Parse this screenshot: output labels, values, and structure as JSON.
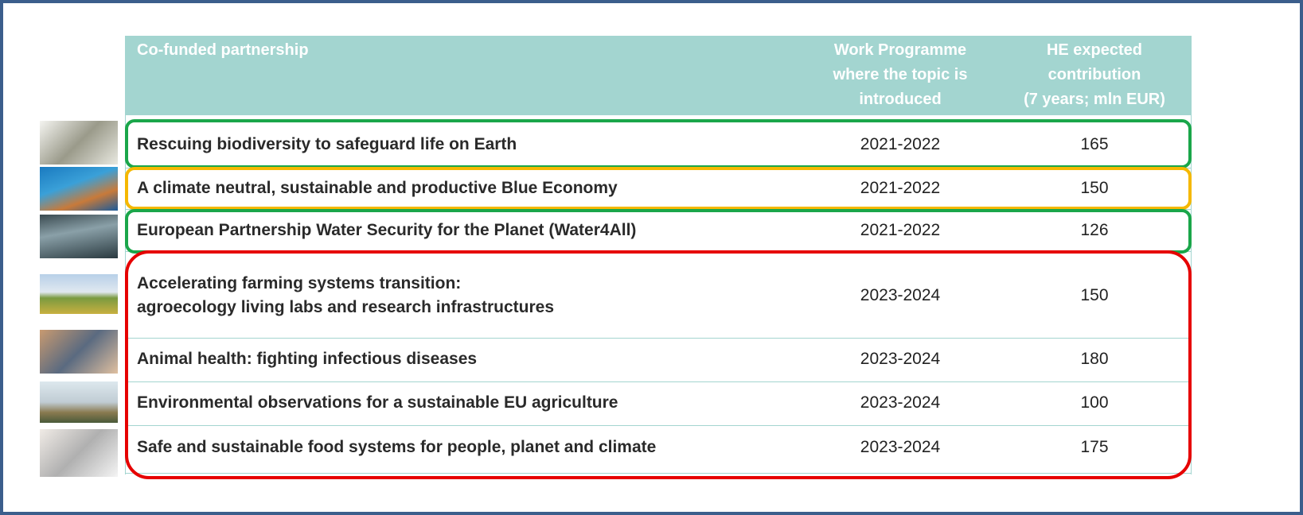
{
  "table": {
    "header": [
      [
        "Co-funded partnership"
      ],
      [
        "Work Programme",
        "where the topic is",
        "introduced"
      ],
      [
        "HE expected",
        "contribution",
        "(7 years; mln EUR)"
      ]
    ],
    "rows": [
      {
        "name": [
          "Rescuing biodiversity to safeguard life on Earth"
        ],
        "work_programme": "2021-2022",
        "contribution": "165"
      },
      {
        "name": [
          "A climate neutral, sustainable and productive Blue Economy"
        ],
        "work_programme": "2021-2022",
        "contribution": "150"
      },
      {
        "name": [
          "European Partnership Water Security for the Planet (Water4All)"
        ],
        "work_programme": "2021-2022",
        "contribution": "126"
      },
      {
        "name": [
          "Accelerating farming systems transition:",
          "agroecology living labs and research infrastructures"
        ],
        "work_programme": "2023-2024",
        "contribution": "150"
      },
      {
        "name": [
          "Animal health: fighting infectious diseases"
        ],
        "work_programme": "2023-2024",
        "contribution": "180"
      },
      {
        "name": [
          "Environmental observations for a sustainable EU agriculture"
        ],
        "work_programme": "2023-2024",
        "contribution": "100"
      },
      {
        "name": [
          "Safe and sustainable food systems for people, planet and climate"
        ],
        "work_programme": "2023-2024",
        "contribution": "175"
      }
    ]
  }
}
